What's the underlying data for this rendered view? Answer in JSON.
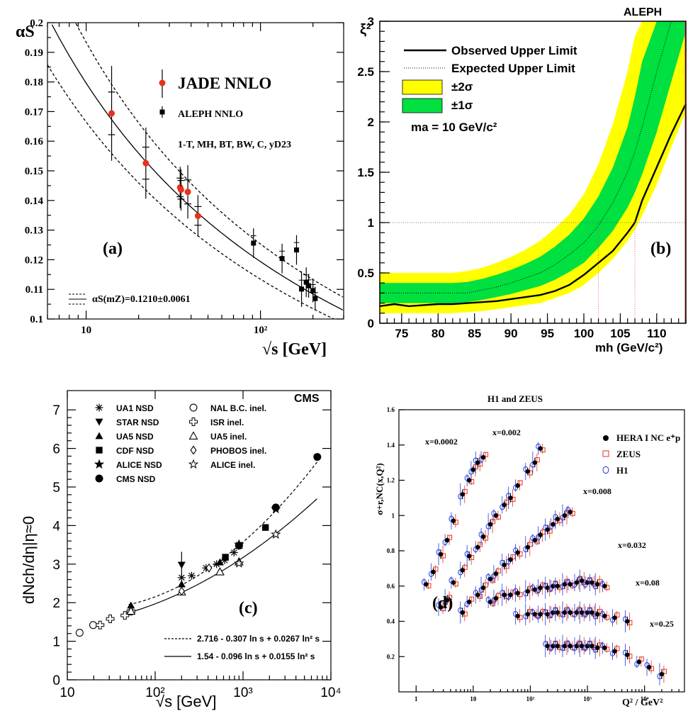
{
  "colors": {
    "jade": "#e8321e",
    "yellow": "#ffff00",
    "green": "#00e040",
    "zeus": "#e8321e",
    "h1": "#1e3ce8",
    "limit_line": "#e05050"
  },
  "chart_data": [
    {
      "id": "a",
      "type": "scatter",
      "panel_label": "(a)",
      "xlabel": "√s [GeV]",
      "ylabel": "αS",
      "xscale": "log",
      "xlim": [
        6,
        300
      ],
      "ylim": [
        0.1,
        0.2
      ],
      "x_ticks": [
        "10",
        "10²"
      ],
      "y_ticks": [
        "0.1",
        "0.11",
        "0.12",
        "0.13",
        "0.14",
        "0.15",
        "0.16",
        "0.17",
        "0.18",
        "0.19",
        "0.2"
      ],
      "legend": [
        "JADE NNLO",
        "ALEPH NNLO"
      ],
      "observables": "1-T, MH, BT, BW, C, yD23",
      "band_label": "αS(mZ)=0.1210±0.0061",
      "alphas_mz": 0.121,
      "alphas_err": 0.0061,
      "series": [
        {
          "name": "JADE NNLO",
          "x": [
            14,
            22,
            34.6,
            35,
            38.3,
            43.8
          ],
          "y": [
            0.1694,
            0.1526,
            0.1444,
            0.1436,
            0.1429,
            0.1348
          ],
          "err": [
            0.016,
            0.012,
            0.007,
            0.007,
            0.009,
            0.007
          ]
        },
        {
          "name": "ALEPH NNLO",
          "x": [
            91.2,
            133,
            161,
            172,
            183,
            189,
            200,
            206
          ],
          "y": [
            0.1256,
            0.1204,
            0.1233,
            0.1101,
            0.1124,
            0.1112,
            0.1096,
            0.1069
          ],
          "err": [
            0.005,
            0.005,
            0.005,
            0.006,
            0.005,
            0.004,
            0.004,
            0.004
          ]
        }
      ]
    },
    {
      "id": "b",
      "type": "line",
      "panel_label": "(b)",
      "title": "ALEPH",
      "xlabel": "mh (GeV/c²)",
      "ylabel": "ξ²",
      "xlim": [
        72,
        114
      ],
      "ylim": [
        0,
        3
      ],
      "x_ticks": [
        "75",
        "80",
        "85",
        "90",
        "95",
        "100",
        "105",
        "110"
      ],
      "y_ticks": [
        "0",
        "0.5",
        "1",
        "1.5",
        "2",
        "2.5",
        "3"
      ],
      "legend": [
        "Observed Upper Limit",
        "Expected Upper Limit",
        "±2σ",
        "±1σ"
      ],
      "annotation": "ma = 10 GeV/c²",
      "x": [
        72,
        74,
        76,
        78,
        80,
        82,
        84,
        86,
        88,
        90,
        92,
        94,
        96,
        98,
        100,
        102,
        104,
        106,
        107,
        108,
        110,
        112,
        114
      ],
      "observed": [
        0.17,
        0.19,
        0.17,
        0.18,
        0.19,
        0.19,
        0.2,
        0.21,
        0.22,
        0.24,
        0.26,
        0.28,
        0.32,
        0.38,
        0.48,
        0.6,
        0.72,
        0.9,
        1.0,
        1.22,
        1.55,
        1.88,
        2.18
      ],
      "expected": [
        0.3,
        0.3,
        0.3,
        0.3,
        0.3,
        0.3,
        0.3,
        0.33,
        0.36,
        0.4,
        0.45,
        0.5,
        0.58,
        0.68,
        0.8,
        0.97,
        1.2,
        1.5,
        1.7,
        1.95,
        2.5,
        3.1,
        3.6
      ],
      "band1_lo": [
        0.2,
        0.2,
        0.2,
        0.2,
        0.2,
        0.2,
        0.21,
        0.23,
        0.26,
        0.29,
        0.33,
        0.37,
        0.43,
        0.51,
        0.6,
        0.75,
        0.92,
        1.15,
        1.3,
        1.48,
        1.9,
        2.4,
        2.9
      ],
      "band1_hi": [
        0.4,
        0.4,
        0.4,
        0.4,
        0.4,
        0.4,
        0.41,
        0.44,
        0.48,
        0.53,
        0.59,
        0.66,
        0.76,
        0.88,
        1.04,
        1.26,
        1.55,
        1.95,
        2.25,
        2.6,
        3.3,
        3.9,
        4.5
      ],
      "band2_lo": [
        0.1,
        0.1,
        0.1,
        0.1,
        0.1,
        0.1,
        0.11,
        0.12,
        0.14,
        0.16,
        0.18,
        0.2,
        0.25,
        0.3,
        0.38,
        0.5,
        0.64,
        0.82,
        0.93,
        1.07,
        1.38,
        1.75,
        2.1
      ],
      "band2_hi": [
        0.5,
        0.5,
        0.5,
        0.5,
        0.5,
        0.5,
        0.52,
        0.55,
        0.6,
        0.66,
        0.73,
        0.82,
        0.94,
        1.08,
        1.28,
        1.58,
        1.98,
        2.5,
        2.85,
        3.3,
        4.1,
        5.0,
        5.8
      ],
      "limit_x": [
        102,
        107
      ]
    },
    {
      "id": "c",
      "type": "scatter",
      "panel_label": "(c)",
      "title": "CMS",
      "xlabel": "√s [GeV]",
      "ylabel": "dNch/dη|η≈0",
      "xscale": "log",
      "xlim": [
        10,
        10000
      ],
      "ylim": [
        0,
        7.5
      ],
      "x_ticks": [
        "10",
        "10²",
        "10³",
        "10⁴"
      ],
      "y_ticks": [
        "0",
        "1",
        "2",
        "3",
        "4",
        "5",
        "6",
        "7"
      ],
      "legend": [
        "UA1 NSD",
        "STAR NSD",
        "UA5 NSD",
        "CDF NSD",
        "ALICE NSD",
        "CMS NSD",
        "NAL B.C. inel.",
        "ISR inel.",
        "UA5 inel.",
        "PHOBOS inel.",
        "ALICE inel."
      ],
      "fits": [
        "2.716 - 0.307 ln s + 0.0267 ln² s",
        "1.54 - 0.096 ln s + 0.0155 ln² s"
      ],
      "series": [
        {
          "name": "UA1 NSD",
          "marker": "asterisk",
          "x": [
            200,
            260,
            380,
            500,
            620,
            790,
            900
          ],
          "y": [
            2.65,
            2.7,
            2.9,
            3.0,
            3.1,
            3.3,
            3.5
          ]
        },
        {
          "name": "STAR NSD",
          "marker": "tri-down",
          "x": [
            200
          ],
          "y": [
            2.98
          ],
          "err": [
            0.34
          ]
        },
        {
          "name": "UA5 NSD",
          "marker": "tri-up",
          "x": [
            53,
            200,
            546,
            900
          ],
          "y": [
            1.93,
            2.48,
            3.05,
            3.48
          ]
        },
        {
          "name": "CDF NSD",
          "marker": "square",
          "x": [
            630,
            1800
          ],
          "y": [
            3.18,
            3.95
          ]
        },
        {
          "name": "ALICE NSD",
          "marker": "star",
          "x": [
            900,
            2360
          ],
          "y": [
            3.51,
            4.43
          ]
        },
        {
          "name": "CMS NSD",
          "marker": "circle",
          "x": [
            900,
            2360,
            7000
          ],
          "y": [
            3.48,
            4.47,
            5.78
          ]
        },
        {
          "name": "NAL B.C. inel.",
          "marker": "circle-open",
          "x": [
            13.8,
            19.7
          ],
          "y": [
            1.22,
            1.42
          ]
        },
        {
          "name": "ISR inel.",
          "marker": "cross-open",
          "x": [
            23.6,
            30.8,
            45.2,
            53
          ],
          "y": [
            1.42,
            1.58,
            1.67,
            1.78
          ]
        },
        {
          "name": "UA5 inel.",
          "marker": "tri-up-open",
          "x": [
            53,
            200,
            546,
            900
          ],
          "y": [
            1.78,
            2.28,
            2.8,
            3.06
          ]
        },
        {
          "name": "PHOBOS inel.",
          "marker": "diamond-open",
          "x": [
            200,
            410
          ],
          "y": [
            2.3,
            2.9
          ]
        },
        {
          "name": "ALICE inel.",
          "marker": "star-open",
          "x": [
            900,
            2360
          ],
          "y": [
            3.02,
            3.77
          ]
        }
      ]
    },
    {
      "id": "d",
      "type": "scatter",
      "panel_label": "(d)",
      "title": "H1 and ZEUS",
      "xlabel": "Q² / GeV²",
      "ylabel": "σ+r,NC(x,Q²)",
      "xscale": "log",
      "xlim": [
        0.5,
        50000
      ],
      "ylim": [
        0,
        1.6
      ],
      "x_ticks": [
        "1",
        "10",
        "10²",
        "10³",
        "10⁴"
      ],
      "y_ticks": [
        "0.2",
        "0.4",
        "0.6",
        "0.8",
        "1",
        "1.2",
        "1.4",
        "1.6"
      ],
      "legend": [
        "HERA I NC e⁺p",
        "ZEUS",
        "H1"
      ],
      "bin_labels": [
        "x=0.0002",
        "x=0.002",
        "x=0.008",
        "x=0.032",
        "x=0.08",
        "x=0.25"
      ],
      "bins": [
        {
          "xbj": "0.0002",
          "q2": [
            1.5,
            2,
            2.7,
            3.5,
            4.5,
            6.5,
            8.5,
            10,
            12,
            15
          ],
          "sig": [
            0.61,
            0.68,
            0.78,
            0.86,
            0.97,
            1.12,
            1.2,
            1.26,
            1.3,
            1.33
          ]
        },
        {
          "xbj": "0.002",
          "q2": [
            2.7,
            3.5,
            4.5,
            6.5,
            8.5,
            12,
            15,
            20,
            25,
            35,
            45,
            60,
            90,
            120,
            150
          ],
          "sig": [
            0.48,
            0.52,
            0.62,
            0.69,
            0.77,
            0.82,
            0.88,
            0.95,
            1.0,
            1.06,
            1.1,
            1.17,
            1.25,
            1.3,
            1.38
          ]
        },
        {
          "xbj": "0.008",
          "q2": [
            6.5,
            8.5,
            12,
            15,
            20,
            25,
            35,
            45,
            60,
            90,
            120,
            150,
            200,
            250,
            300,
            400,
            500
          ],
          "sig": [
            0.45,
            0.51,
            0.55,
            0.59,
            0.64,
            0.67,
            0.72,
            0.75,
            0.79,
            0.82,
            0.86,
            0.89,
            0.92,
            0.95,
            0.98,
            1.0,
            1.02
          ]
        },
        {
          "xbj": "0.032",
          "q2": [
            20,
            25,
            35,
            45,
            60,
            90,
            120,
            150,
            200,
            250,
            300,
            400,
            500,
            650,
            800,
            1000,
            1200,
            1500,
            2000
          ],
          "sig": [
            0.51,
            0.53,
            0.55,
            0.55,
            0.56,
            0.57,
            0.58,
            0.59,
            0.59,
            0.6,
            0.6,
            0.61,
            0.61,
            0.62,
            0.63,
            0.62,
            0.62,
            0.61,
            0.6
          ]
        },
        {
          "xbj": "0.08",
          "q2": [
            60,
            90,
            120,
            150,
            200,
            250,
            300,
            400,
            500,
            650,
            800,
            1000,
            1200,
            1500,
            2000,
            3000,
            5000
          ],
          "sig": [
            0.43,
            0.44,
            0.44,
            0.44,
            0.44,
            0.45,
            0.45,
            0.45,
            0.45,
            0.45,
            0.45,
            0.45,
            0.45,
            0.44,
            0.43,
            0.42,
            0.4
          ]
        },
        {
          "xbj": "0.25",
          "q2": [
            200,
            250,
            300,
            400,
            500,
            650,
            800,
            1000,
            1200,
            1500,
            2000,
            3000,
            5000,
            8000,
            12000,
            20000
          ],
          "sig": [
            0.26,
            0.26,
            0.26,
            0.26,
            0.26,
            0.26,
            0.26,
            0.26,
            0.26,
            0.25,
            0.25,
            0.23,
            0.21,
            0.17,
            0.14,
            0.1
          ]
        }
      ]
    }
  ]
}
